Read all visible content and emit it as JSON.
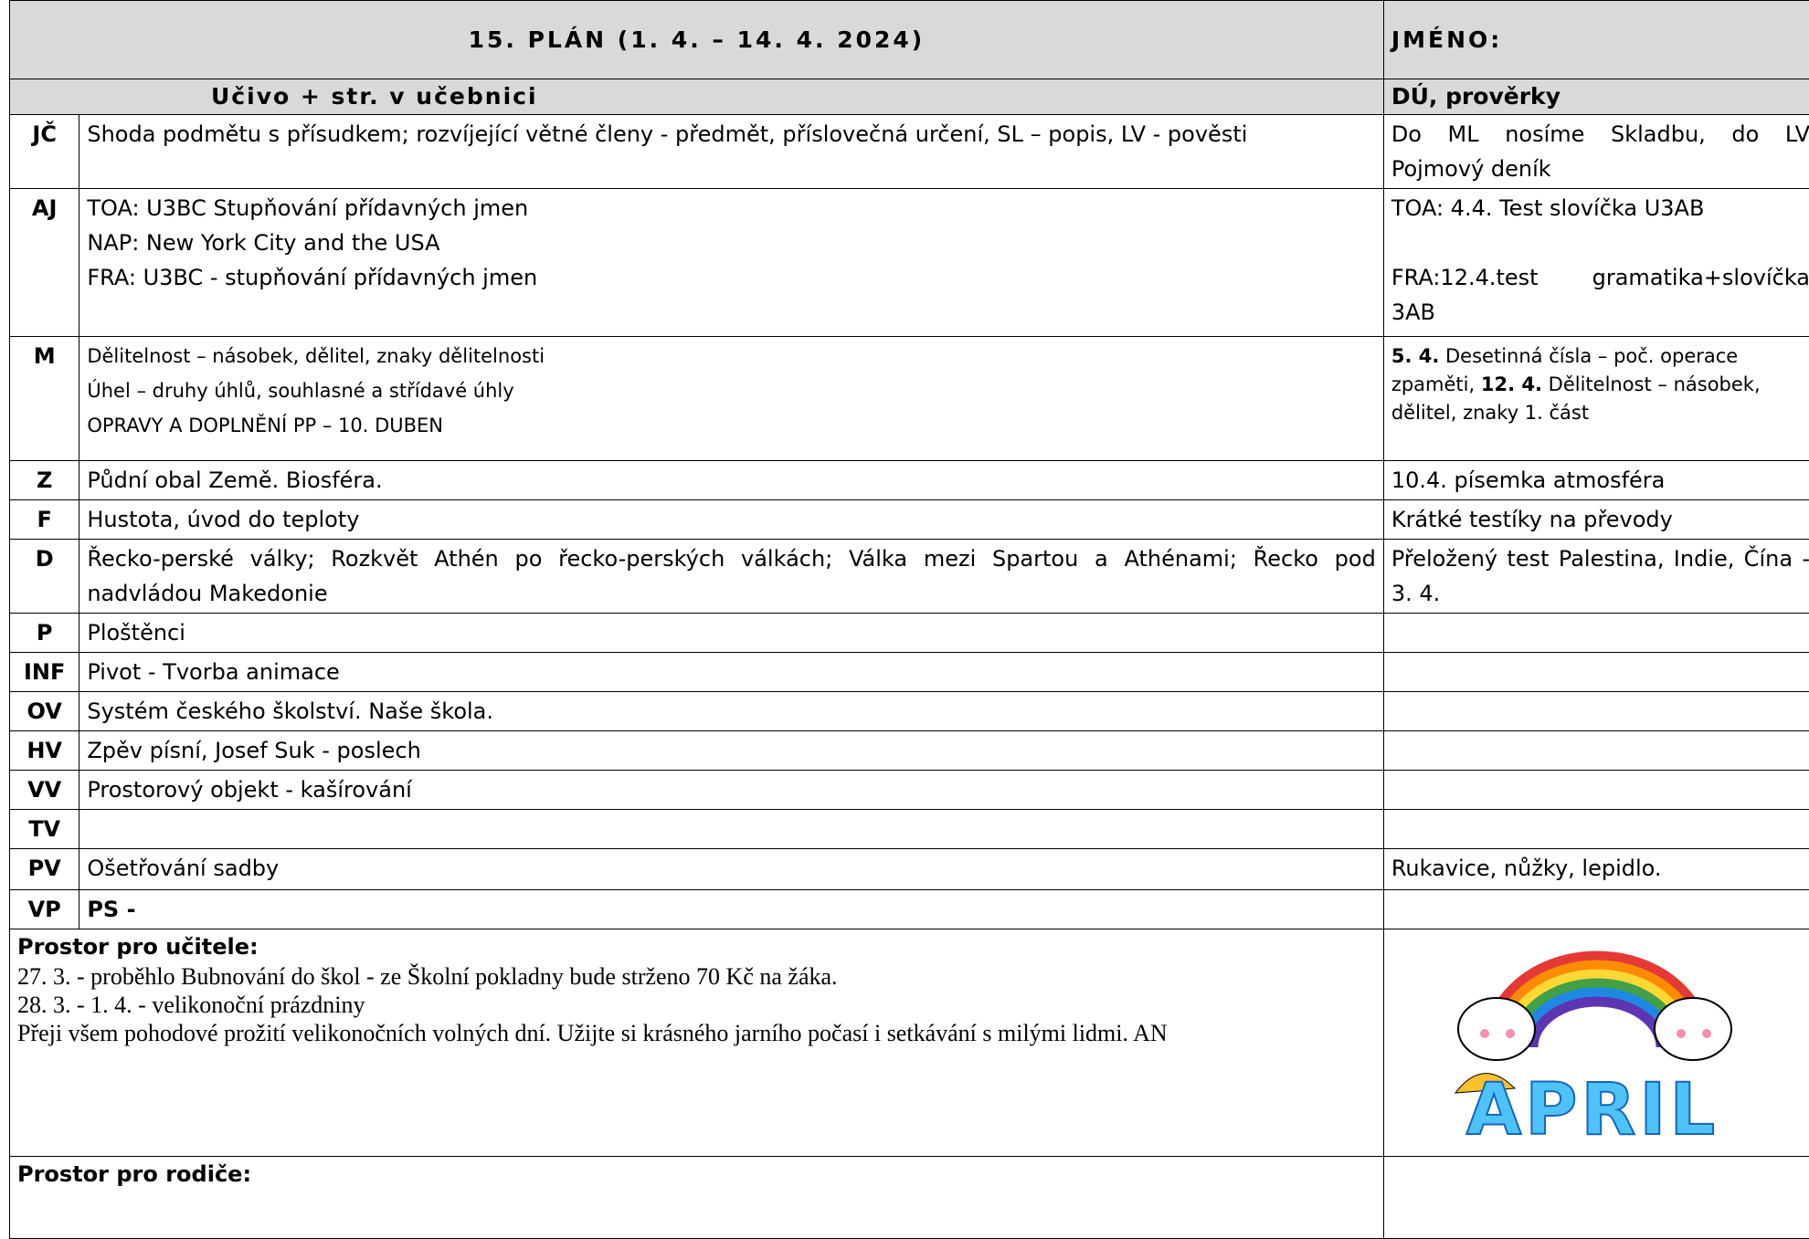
{
  "header": {
    "title": "15. PLÁN (1. 4. – 14. 4. 2024)",
    "name_label": "JMÉNO:"
  },
  "table": {
    "columns": [
      "Učivo + str. v učebnici",
      "DÚ, prověrky"
    ],
    "rows": [
      {
        "subject": "JČ",
        "topics": [
          "Shoda podmětu s přísudkem; rozvíjející větné členy - předmět, příslovečná určení, SL – popis, LV - pověsti"
        ],
        "homework": [
          "Do ML nosíme Skladbu, do LV Pojmový deník"
        ]
      },
      {
        "subject": "AJ",
        "topics": [
          "TOA: U3BC Stupňování přídavných jmen",
          "NAP: New York City and the USA",
          "FRA: U3BC - stupňování přídavných jmen"
        ],
        "homework": [
          "TOA: 4.4. Test slovíčka U3AB",
          "FRA:12.4.test  gramatika+slovíčka 3AB"
        ]
      },
      {
        "subject": "M",
        "small": true,
        "topics": [
          "Dělitelnost – násobek, dělitel, znaky dělitelnosti",
          "Úhel – druhy úhlů, souhlasné a střídavé úhly",
          "OPRAVY A DOPLNĚNÍ PP – 10. DUBEN"
        ],
        "homework_parts": [
          {
            "text": "5. 4.",
            "bold": true
          },
          {
            "text": "Desetinná čísla – poč. operace zpaměti,"
          },
          {
            "text": "12. 4.",
            "bold": true
          },
          {
            "text": "Dělitelnost – násobek, dělitel, znaky 1. část"
          }
        ]
      },
      {
        "subject": "Z",
        "topics": [
          "Půdní obal Země. Biosféra."
        ],
        "homework": [
          "10.4. písemka atmosféra"
        ]
      },
      {
        "subject": "F",
        "topics": [
          "Hustota, úvod do teploty"
        ],
        "homework": [
          "Krátké testíky na převody"
        ]
      },
      {
        "subject": "D",
        "topics": [
          "Řecko-perské války; Rozkvět Athén po řecko-perských válkách; Válka mezi Spartou a Athénami; Řecko pod nadvládou Makedonie"
        ],
        "homework": [
          "Přeložený test Palestina, Indie, Čína - 3. 4."
        ]
      },
      {
        "subject": "P",
        "topics": [
          "Ploštěnci"
        ]
      },
      {
        "subject": "INF",
        "topics": [
          "Pivot - Tvorba animace"
        ]
      },
      {
        "subject": "OV",
        "topics": [
          "Systém českého školství. Naše škola."
        ]
      },
      {
        "subject": "HV",
        "topics": [
          "Zpěv písní, Josef Suk - poslech"
        ]
      },
      {
        "subject": "VV",
        "topics": [
          "Prostorový objekt - kašírování"
        ]
      },
      {
        "subject": "TV"
      },
      {
        "subject": "PV",
        "topics": [
          "Ošetřování sadby"
        ],
        "homework": [
          "Rukavice, nůžky, lepidlo."
        ]
      },
      {
        "subject": "VP",
        "topics": [
          "PS -"
        ],
        "topics_bold": true
      }
    ]
  },
  "teacher_note": {
    "label": "Prostor pro učitele:",
    "lines": [
      "27. 3. - proběhlo Bubnování do škol - ze Školní pokladny bude strženo 70 Kč na žáka.",
      "28. 3. - 1. 4. - velikonoční prázdniny",
      "Přeji všem pohodové prožití velikonočních volných dní. Užijte si krásného jarního počasí i setkávání s milými lidmi. AN"
    ]
  },
  "image": {
    "text": "APRIL"
  },
  "parent_note": {
    "label": "Prostor pro rodiče:"
  }
}
